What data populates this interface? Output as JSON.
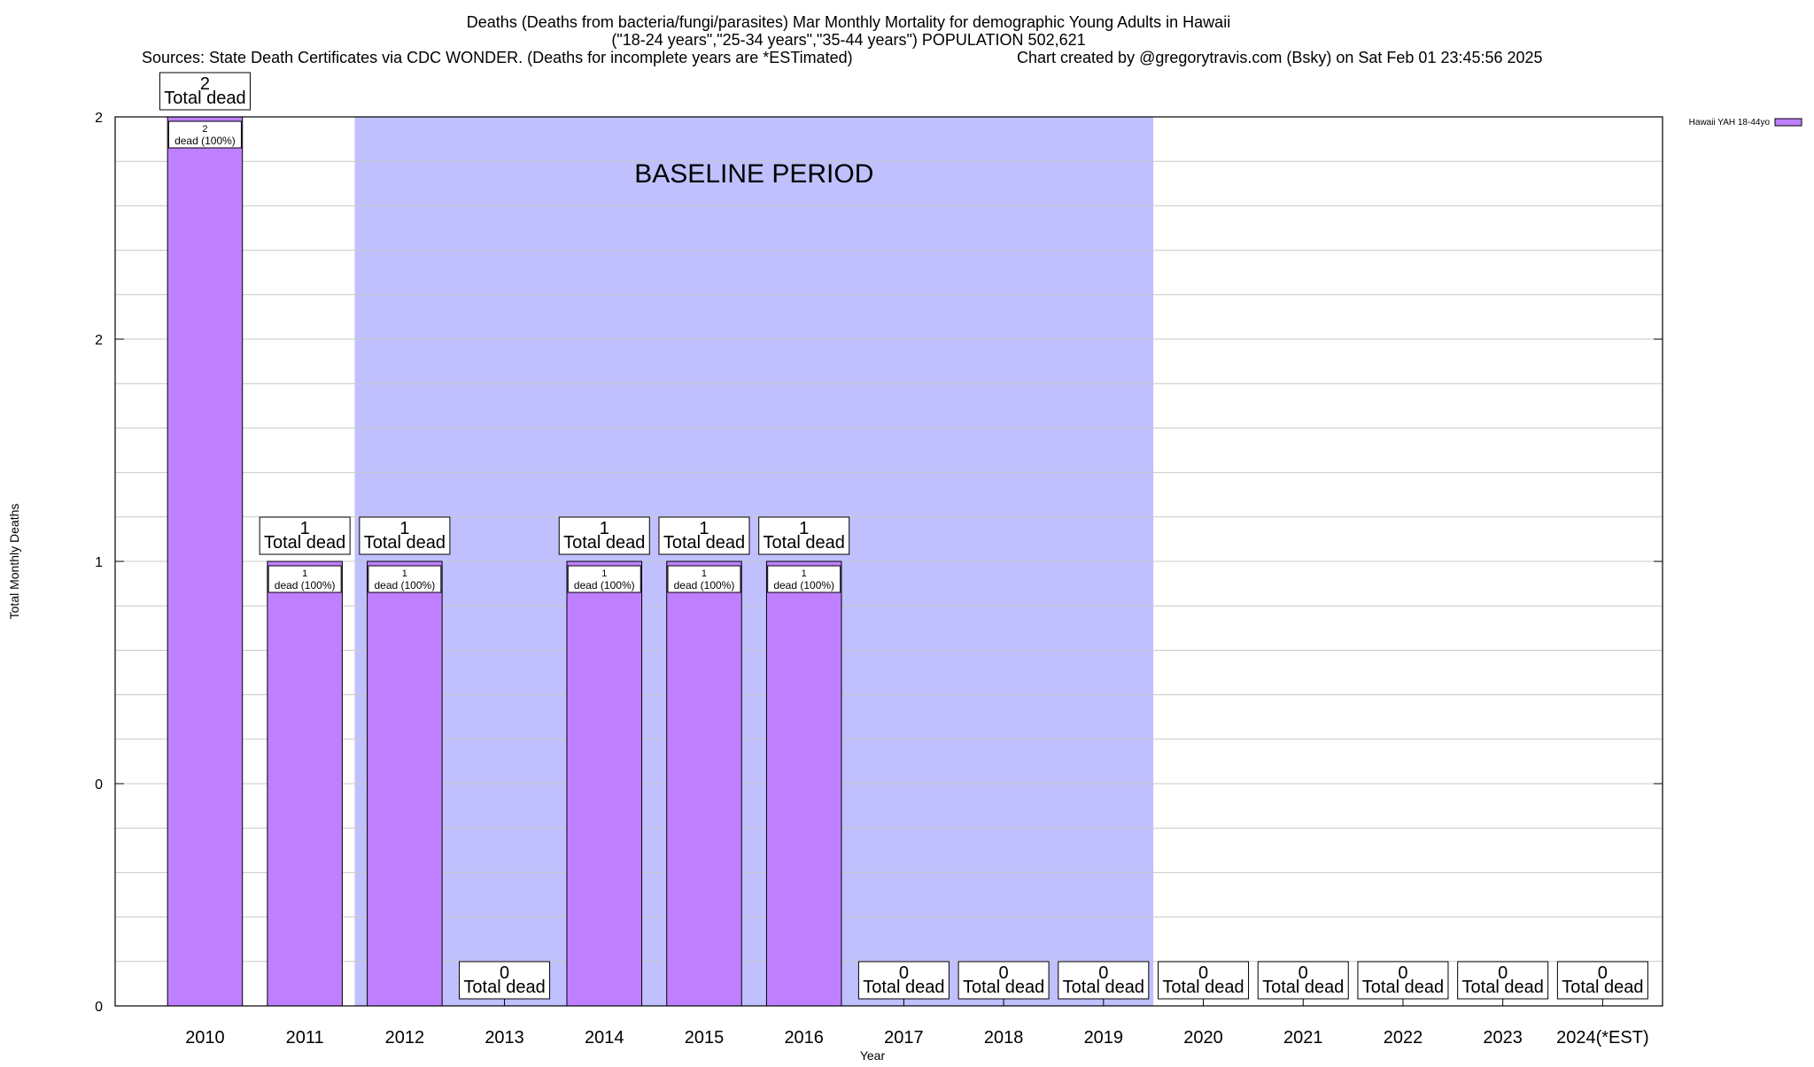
{
  "chart_data": {
    "type": "bar",
    "title_lines": [
      "Deaths (Deaths from bacteria/fungi/parasites) Mar Monthly Mortality for demographic Young Adults in Hawaii",
      "(\"18-24 years\",\"25-34 years\",\"35-44 years\") POPULATION 502,621"
    ],
    "sources": "Sources: State Death Certificates via CDC WONDER. (Deaths for incomplete years are *ESTimated)",
    "credit": "Chart created by @gregorytravis.com (Bsky) on Sat Feb 01 23:45:56 2025",
    "xlabel": "Year",
    "ylabel": "Total Monthly Deaths",
    "categories": [
      "2010",
      "2011",
      "2012",
      "2013",
      "2014",
      "2015",
      "2016",
      "2017",
      "2018",
      "2019",
      "2020",
      "2021",
      "2022",
      "2023",
      "2024(*EST)"
    ],
    "series": [
      {
        "name": "Hawaii YAH 18-44yo",
        "values": [
          2,
          1,
          1,
          0,
          1,
          1,
          1,
          0,
          0,
          0,
          0,
          0,
          0,
          0,
          0
        ]
      }
    ],
    "ylim": [
      0,
      2
    ],
    "y_tick_labels": [
      "0",
      "0",
      "1",
      "2",
      "2"
    ],
    "total_label_suffix": "Total dead",
    "inner_label_suffix": "dead (100%)",
    "baseline": {
      "label": "BASELINE PERIOD",
      "from": "2012",
      "to": "2019"
    },
    "grid": true,
    "legend_position": "top-right",
    "colors": {
      "bar": "#bf80ff",
      "baseline": "#c0c0ff",
      "grid": "#c8c8c8"
    }
  }
}
